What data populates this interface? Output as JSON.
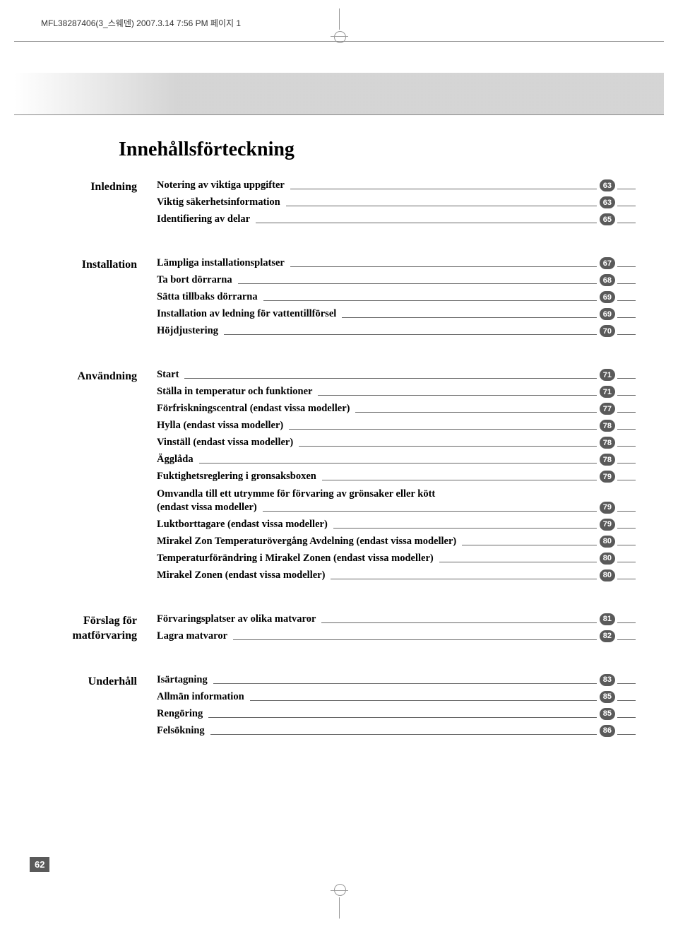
{
  "print_header": "MFL38287406(3_스웨덴)  2007.3.14 7:56 PM  페이지 1",
  "main_title": "Innehållsförteckning",
  "page_number": "62",
  "sections": [
    {
      "label": "Inledning",
      "items": [
        {
          "text": "Notering av viktiga uppgifter",
          "page": "63"
        },
        {
          "text": "Viktig säkerhetsinformation",
          "page": "63"
        },
        {
          "text": "Identifiering av delar",
          "page": "65"
        }
      ]
    },
    {
      "label": "Installation",
      "items": [
        {
          "text": "Lämpliga installationsplatser",
          "page": "67"
        },
        {
          "text": "Ta bort dörrarna",
          "page": "68"
        },
        {
          "text": "Sätta tillbaks dörrarna",
          "page": "69"
        },
        {
          "text": "Installation av ledning för vattentillförsel",
          "page": "69"
        },
        {
          "text": "Höjdjustering",
          "page": "70"
        }
      ]
    },
    {
      "label": "Användning",
      "items": [
        {
          "text": "Start",
          "page": "71"
        },
        {
          "text": "Ställa in temperatur och funktioner",
          "page": "71"
        },
        {
          "text": "Förfriskningscentral (endast vissa modeller)",
          "page": "77"
        },
        {
          "text": "Hylla (endast vissa modeller)",
          "page": "78"
        },
        {
          "text": "Vinställ (endast vissa modeller)",
          "page": "78"
        },
        {
          "text": "Ägglåda",
          "page": "78"
        },
        {
          "text": "Fuktighetsreglering i gronsaksboxen",
          "page": "79"
        },
        {
          "text": "Omvandla till ett utrymme för förvaring av grönsaker eller kött",
          "text2": "(endast vissa modeller)",
          "page": "79",
          "multi": true
        },
        {
          "text": "Luktborttagare (endast vissa modeller)",
          "page": "79"
        },
        {
          "text": "Mirakel Zon Temperaturövergång Avdelning (endast vissa modeller)",
          "page": "80"
        },
        {
          "text": "Temperaturförändring i Mirakel Zonen (endast vissa modeller)",
          "page": "80"
        },
        {
          "text": "Mirakel Zonen (endast vissa modeller)",
          "page": "80"
        }
      ]
    },
    {
      "label": "Förslag för matförvaring",
      "items": [
        {
          "text": "Förvaringsplatser av olika matvaror",
          "page": "81"
        },
        {
          "text": "Lagra matvaror",
          "page": "82"
        }
      ]
    },
    {
      "label": "Underhåll",
      "items": [
        {
          "text": "Isärtagning",
          "page": "83"
        },
        {
          "text": "Allmän information",
          "page": "85"
        },
        {
          "text": "Rengöring",
          "page": "85"
        },
        {
          "text": "Felsökning",
          "page": "86"
        }
      ]
    }
  ]
}
